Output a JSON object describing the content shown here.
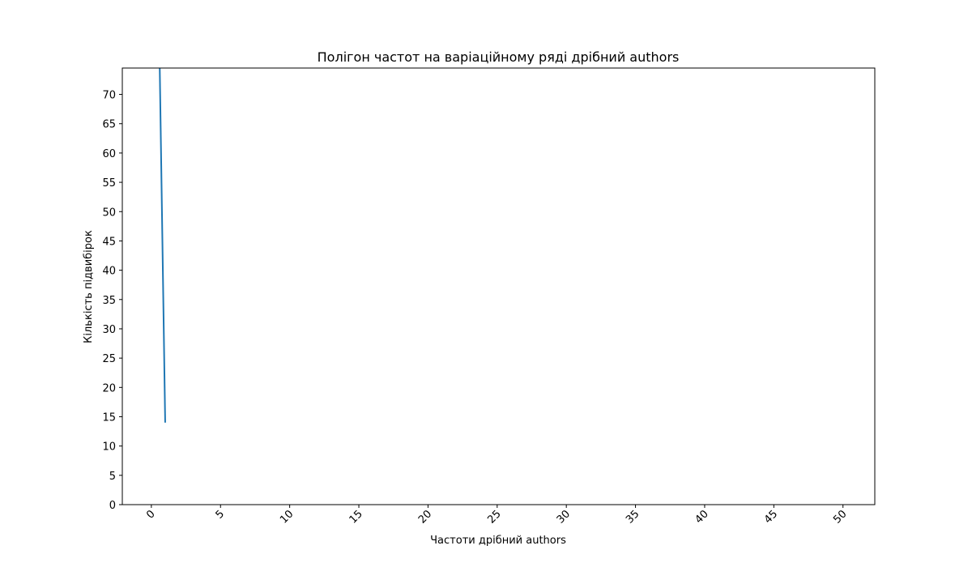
{
  "chart_data": {
    "type": "line",
    "title": "Полігон частот на варіаційному ряді дрібний authors",
    "xlabel": "Частоти дрібний authors",
    "ylabel": "Кількість підвибірок",
    "xlim": [
      -2.1,
      52.3
    ],
    "ylim": [
      0,
      74.5
    ],
    "xticks": [
      0,
      5,
      10,
      15,
      20,
      25,
      30,
      35,
      40,
      45,
      50
    ],
    "yticks": [
      0,
      5,
      10,
      15,
      20,
      25,
      30,
      35,
      40,
      45,
      50,
      55,
      60,
      65,
      70
    ],
    "xtick_rotation": -45,
    "grid": false,
    "series": [
      {
        "color": "#1f77b4",
        "points": [
          {
            "x": 0.6,
            "y": 75.5
          },
          {
            "x": 1.0,
            "y": 14.0
          }
        ]
      }
    ]
  }
}
